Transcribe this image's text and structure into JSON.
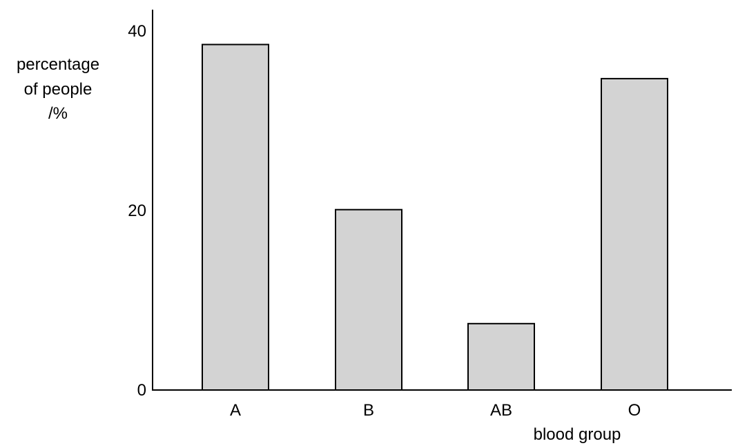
{
  "chart_data": {
    "type": "bar",
    "categories": [
      "A",
      "B",
      "AB",
      "O"
    ],
    "values": [
      38.5,
      20.1,
      7.4,
      34.7
    ],
    "ylabel": [
      "percentage",
      "of people",
      "/%"
    ],
    "xlabel": "blood group",
    "yticks": [
      0,
      20,
      40
    ],
    "ylim": [
      0,
      42
    ],
    "grid": false,
    "colors": {
      "bar_fill": "#d3d3d3",
      "bar_stroke": "#000000",
      "axis": "#000000"
    }
  }
}
